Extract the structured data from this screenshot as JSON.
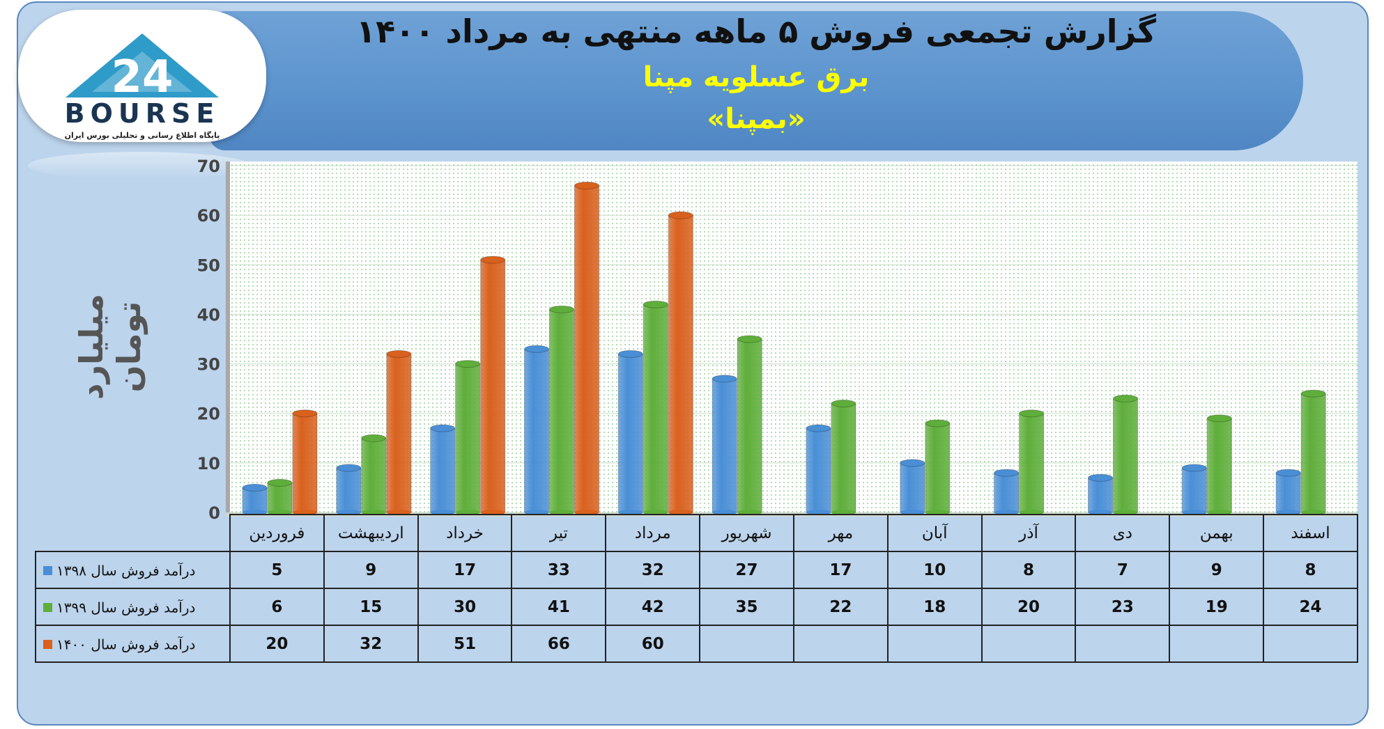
{
  "title": "گزارش تجمعی فروش ۵ ماهه منتهی به مرداد ۱۴۰۰",
  "subtitle": "برق عسلویه مپنا",
  "symbol": "«بمپنا»",
  "logo": {
    "text": "BOURSE",
    "tagline": "پایگاه اطلاع رسانی و تحلیلی بورس ایران",
    "icon": "triangle-24-logo-icon"
  },
  "colors": {
    "frame_bg": "#bcd4ec",
    "header_bg": "#5b93cd",
    "series_1398": "#4a8fd6",
    "series_1399": "#5fae3b",
    "series_1400": "#d9611e",
    "subtitle": "#ffff00"
  },
  "chart_data": {
    "type": "bar",
    "title": "گزارش تجمعی فروش ۵ ماهه منتهی به مرداد ۱۴۰۰",
    "subtitle": "برق عسلویه مپنا",
    "ylabel": "میلیارد تومان",
    "ylim": [
      0,
      70
    ],
    "yticks": [
      0,
      10,
      20,
      30,
      40,
      50,
      60,
      70
    ],
    "grid": true,
    "legend": "data-table",
    "categories": [
      "فروردین",
      "اردیبهشت",
      "خرداد",
      "تیر",
      "مرداد",
      "شهریور",
      "مهر",
      "آبان",
      "آذر",
      "دی",
      "بهمن",
      "اسفند"
    ],
    "series": [
      {
        "name": "درآمد فروش سال ۱۳۹۸",
        "color": "#4a8fd6",
        "values": [
          5,
          9,
          17,
          33,
          32,
          27,
          17,
          10,
          8,
          7,
          9,
          8
        ]
      },
      {
        "name": "درآمد فروش سال ۱۳۹۹",
        "color": "#5fae3b",
        "values": [
          6,
          15,
          30,
          41,
          42,
          35,
          22,
          18,
          20,
          23,
          19,
          24
        ]
      },
      {
        "name": "درآمد فروش سال ۱۴۰۰",
        "color": "#d9611e",
        "values": [
          20,
          32,
          51,
          66,
          60,
          null,
          null,
          null,
          null,
          null,
          null,
          null
        ]
      }
    ]
  }
}
